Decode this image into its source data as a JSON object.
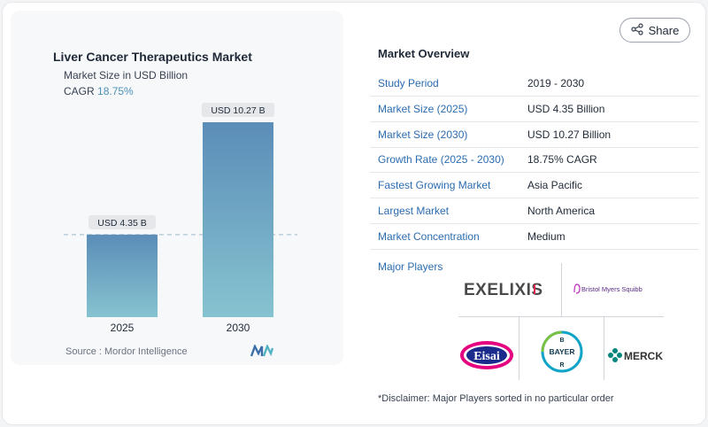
{
  "share": {
    "label": "Share",
    "icon": "share-icon"
  },
  "chart_data": {
    "type": "bar",
    "title": "Liver Cancer Therapeutics Market",
    "subtitle": "Market Size in USD Billion",
    "cagr_label": "CAGR",
    "cagr_value": "18.75%",
    "categories": [
      "2025",
      "2030"
    ],
    "values": [
      4.35,
      10.27
    ],
    "data_labels": [
      "USD 4.35 B",
      "USD 10.27 B"
    ],
    "ylim": [
      0,
      10.27
    ],
    "grid": false,
    "colors": {
      "bar_top": "#5b8db8",
      "bar_bottom": "#86c3d0",
      "reference_line": "#9fb8c8"
    }
  },
  "source": {
    "text": "Source :  Mordor Intelligence"
  },
  "overview": {
    "title": "Market Overview",
    "rows": [
      {
        "label": "Study Period",
        "value": "2019 - 2030"
      },
      {
        "label": "Market Size (2025)",
        "value": "USD 4.35 Billion"
      },
      {
        "label": "Market Size (2030)",
        "value": "USD 10.27 Billion"
      },
      {
        "label": "Growth Rate (2025 - 2030)",
        "value": "18.75% CAGR"
      },
      {
        "label": "Fastest Growing Market",
        "value": "Asia Pacific"
      },
      {
        "label": "Largest Market",
        "value": "North America"
      },
      {
        "label": "Market Concentration",
        "value": "Medium"
      }
    ]
  },
  "players": {
    "label": "Major Players",
    "logos": {
      "exelixis": "EXELIXIS",
      "bms": "Bristol Myers Squibb",
      "eisai": "Eisai",
      "bayer": "BAYER",
      "merck": "MERCK"
    }
  },
  "disclaimer": "*Disclaimer: Major Players sorted in no particular order"
}
